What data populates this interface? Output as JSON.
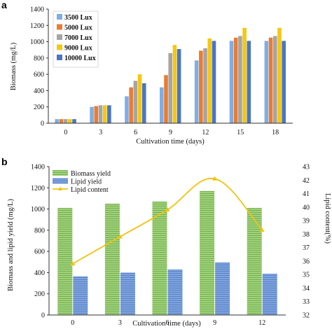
{
  "panel_labels": {
    "a": "a",
    "b": "b"
  },
  "colors": {
    "lux3500": "#7faee3",
    "lux5000": "#e97c33",
    "lux7000": "#a5a5a5",
    "lux9000": "#f6c711",
    "lux10000": "#4a76c2",
    "biomass_yield": "#8fc46a",
    "lipid_yield": "#6e95d4",
    "lipid_content": "#f1c40f"
  },
  "chart_data": [
    {
      "type": "bar",
      "title": "",
      "xlabel": "Cultivation time (days)",
      "ylabel": "Biomass (mg/L)",
      "categories": [
        "0",
        "3",
        "6",
        "9",
        "12",
        "15",
        "18"
      ],
      "yticks": [
        "0",
        "200",
        "400",
        "600",
        "800",
        "1000",
        "1200",
        "1400"
      ],
      "ylim": [
        0,
        1400
      ],
      "legend_position": "top-left",
      "grid": false,
      "series": [
        {
          "name": "3500 Lux",
          "color_key": "lux3500",
          "values": [
            50,
            200,
            330,
            440,
            770,
            1010,
            1010
          ]
        },
        {
          "name": "5000 Lux",
          "color_key": "lux5000",
          "values": [
            50,
            210,
            440,
            590,
            890,
            1050,
            1050
          ]
        },
        {
          "name": "7000 Lux",
          "color_key": "lux7000",
          "values": [
            50,
            220,
            520,
            860,
            920,
            1070,
            1070
          ]
        },
        {
          "name": "9000 Lux",
          "color_key": "lux9000",
          "values": [
            50,
            220,
            600,
            960,
            1040,
            1170,
            1170
          ]
        },
        {
          "name": "10000 Lux",
          "color_key": "lux10000",
          "values": [
            50,
            220,
            490,
            910,
            1010,
            1010,
            1010
          ]
        }
      ]
    },
    {
      "type": "bar",
      "title": "",
      "xlabel": "Cultivation time (days)",
      "ylabel": "Biomass and lipid yield (mg/L)",
      "y2label": "Lipid content(%)",
      "categories": [
        "0",
        "3",
        "6",
        "9",
        "12"
      ],
      "yticks": [
        "0",
        "200",
        "400",
        "600",
        "800",
        "1000",
        "1200",
        "1400"
      ],
      "ylim": [
        0,
        1400
      ],
      "y2ticks": [
        "32",
        "33",
        "34",
        "35",
        "36",
        "37",
        "38",
        "39",
        "40",
        "41",
        "42",
        "43"
      ],
      "y2lim": [
        32,
        43
      ],
      "legend_position": "top-left",
      "grid": false,
      "series": [
        {
          "name": "Biomass yield",
          "kind": "bar",
          "color_key": "biomass_yield",
          "values": [
            1010,
            1050,
            1070,
            1170,
            1010
          ]
        },
        {
          "name": "Lipid yield",
          "kind": "bar",
          "color_key": "lipid_yield",
          "values": [
            365,
            400,
            430,
            495,
            390
          ]
        },
        {
          "name": "Lipid content",
          "kind": "line",
          "axis": "right",
          "color_key": "lipid_content",
          "values": [
            35.8,
            37.8,
            39.8,
            42.1,
            38.3
          ]
        }
      ]
    }
  ]
}
